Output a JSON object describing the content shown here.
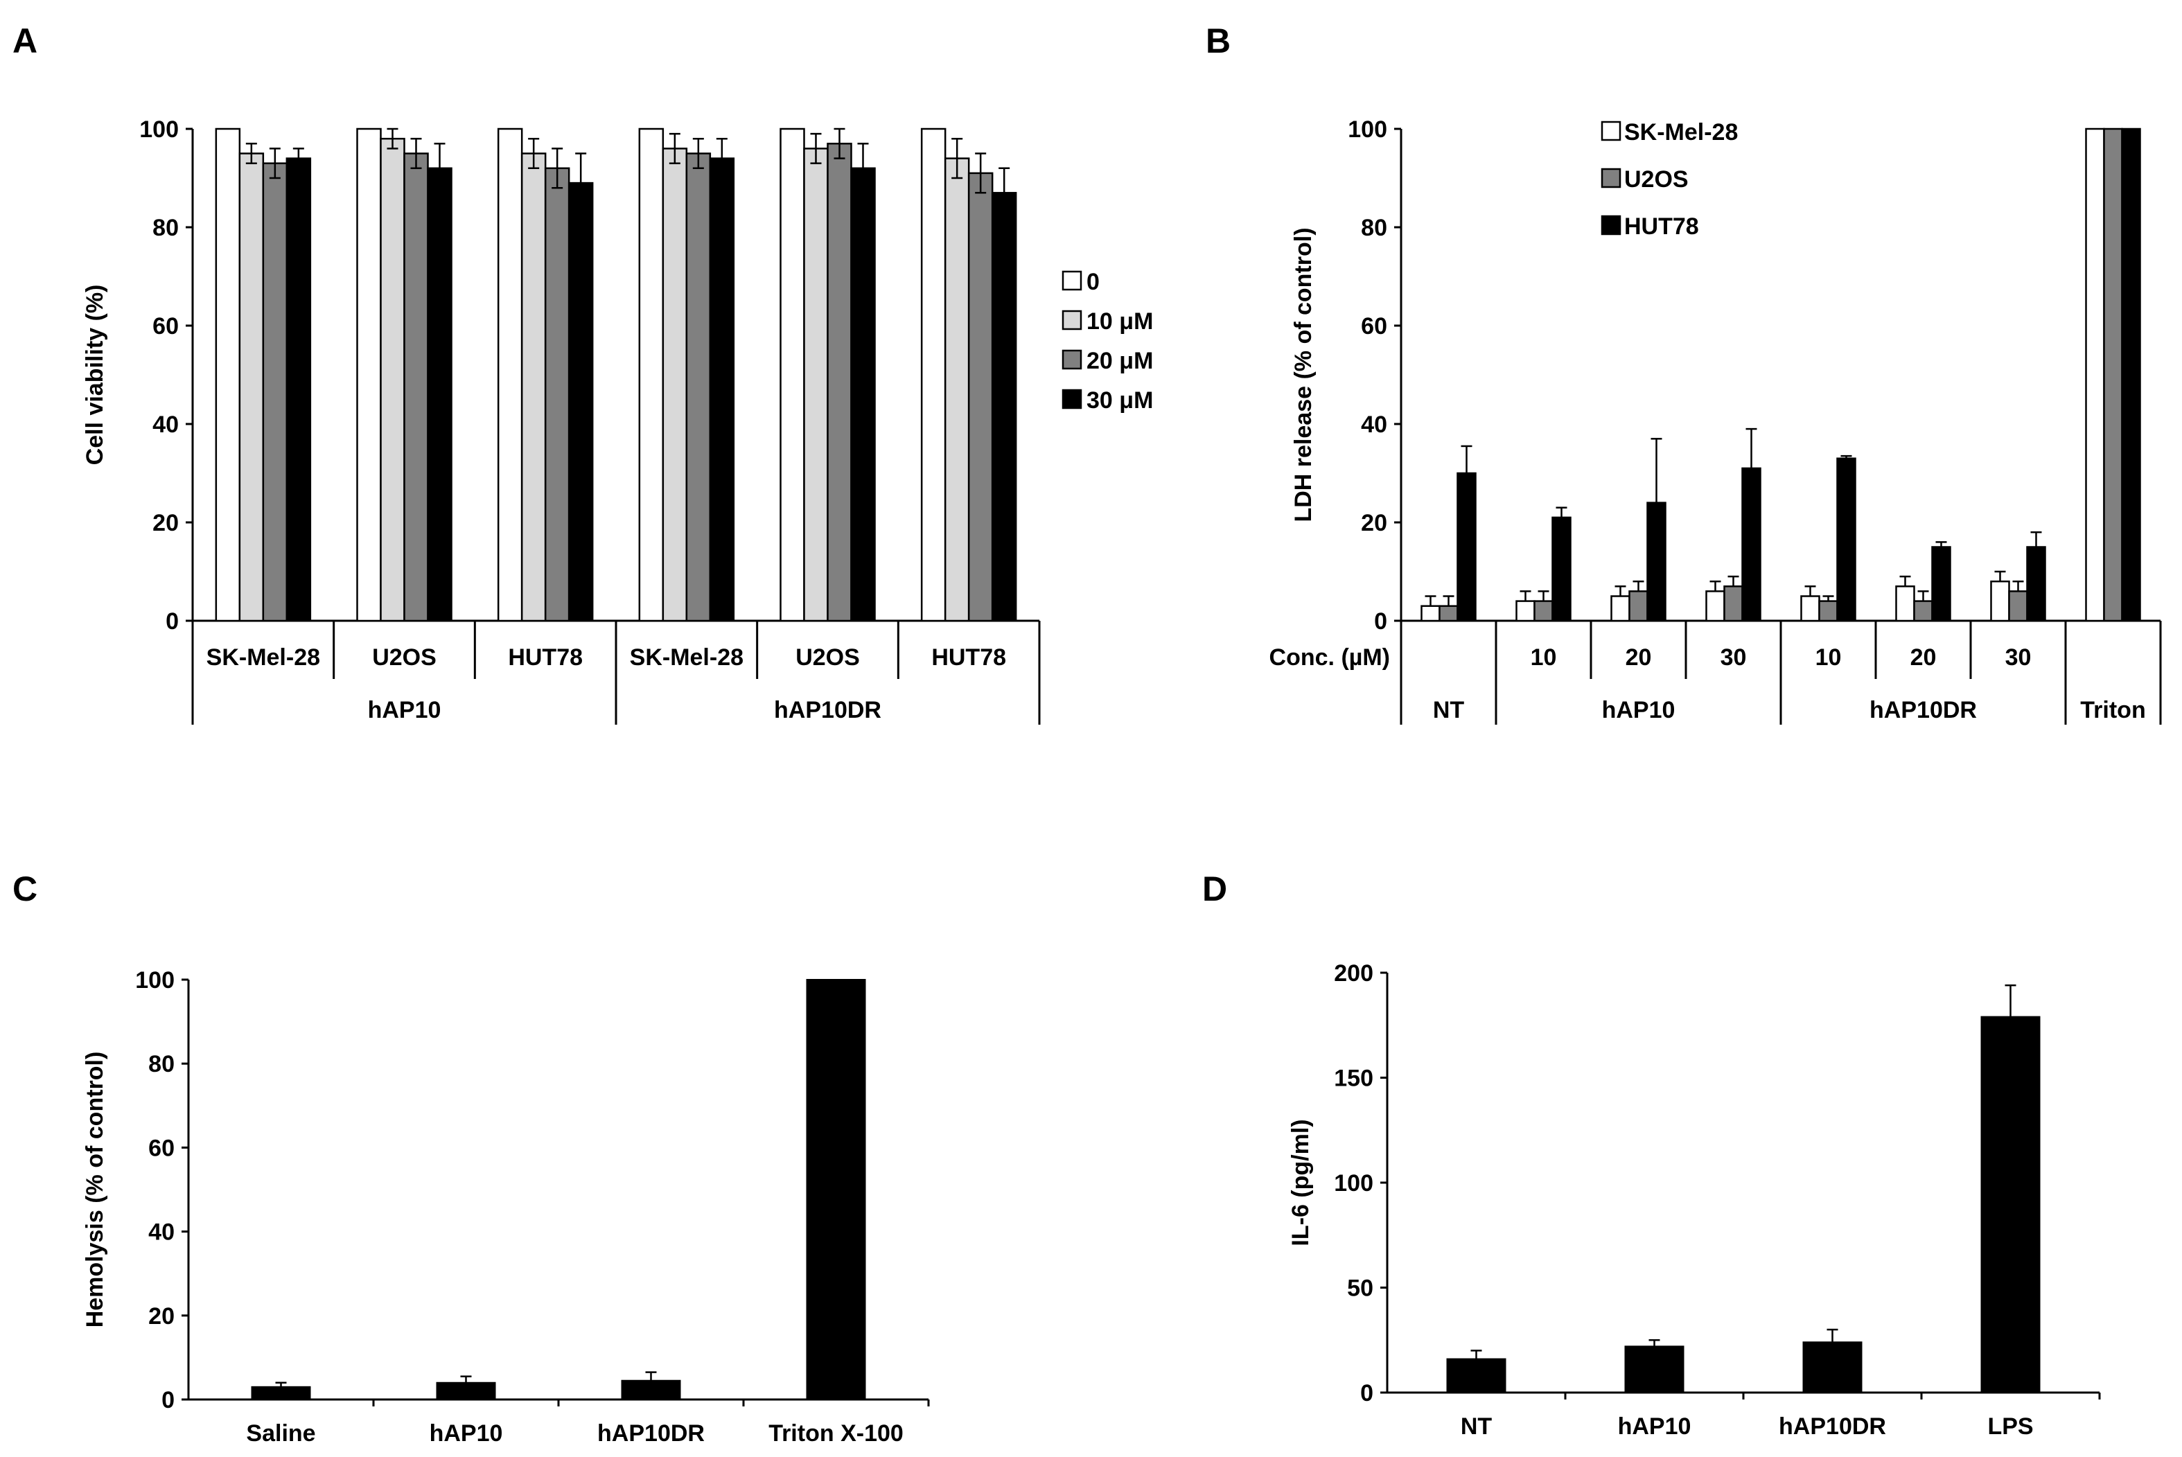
{
  "chart_data": [
    {
      "panel": "A",
      "type": "bar",
      "ylabel": "Cell viability (%)",
      "ylim": [
        0,
        100
      ],
      "yticks": [
        "0",
        "20",
        "40",
        "60",
        "80",
        "100"
      ],
      "categories": [
        "SK-Mel-28",
        "U2OS",
        "HUT78",
        "SK-Mel-28",
        "U2OS",
        "HUT78"
      ],
      "groups": [
        "hAP10",
        "hAP10DR"
      ],
      "series": [
        {
          "name": "0",
          "color": "#ffffff",
          "values": [
            100,
            100,
            100,
            100,
            100,
            100
          ],
          "errors": [
            0,
            0,
            0,
            0,
            0,
            0
          ]
        },
        {
          "name": "10 μM",
          "color": "#d9d9d9",
          "values": [
            95,
            98,
            95,
            96,
            96,
            94
          ],
          "errors": [
            2,
            2,
            3,
            3,
            3,
            4
          ]
        },
        {
          "name": "20 μM",
          "color": "#808080",
          "values": [
            93,
            95,
            92,
            95,
            97,
            91
          ],
          "errors": [
            3,
            3,
            4,
            3,
            3,
            4
          ]
        },
        {
          "name": "30 μM",
          "color": "#000000",
          "values": [
            94,
            92,
            89,
            94,
            92,
            87
          ],
          "errors": [
            2,
            5,
            6,
            4,
            5,
            5
          ]
        }
      ]
    },
    {
      "panel": "B",
      "type": "bar",
      "ylabel": "LDH release (% of control)",
      "ylim": [
        0,
        100
      ],
      "yticks": [
        "0",
        "20",
        "40",
        "60",
        "80",
        "100"
      ],
      "conc_label": "Conc. (µM)",
      "categories": [
        "",
        "10",
        "20",
        "30",
        "10",
        "20",
        "30",
        ""
      ],
      "groups": [
        "NT",
        "hAP10",
        "hAP10DR",
        "Triton"
      ],
      "series": [
        {
          "name": "SK-Mel-28",
          "color": "#ffffff",
          "values": [
            3,
            4,
            5,
            6,
            5,
            7,
            8,
            100
          ],
          "errors": [
            2,
            2,
            2,
            2,
            2,
            2,
            2,
            0
          ]
        },
        {
          "name": "U2OS",
          "color": "#808080",
          "values": [
            3,
            4,
            6,
            7,
            4,
            4,
            6,
            100
          ],
          "errors": [
            2,
            2,
            2,
            2,
            1,
            2,
            2,
            0
          ]
        },
        {
          "name": "HUT78",
          "color": "#000000",
          "values": [
            30,
            21,
            24,
            31,
            33,
            15,
            15,
            100
          ],
          "errors": [
            5.5,
            2,
            13,
            8,
            0.5,
            1,
            3,
            0
          ]
        }
      ]
    },
    {
      "panel": "C",
      "type": "bar",
      "ylabel": "Hemolysis (% of control)",
      "ylim": [
        0,
        100
      ],
      "yticks": [
        "0",
        "20",
        "40",
        "60",
        "80",
        "100"
      ],
      "categories": [
        "Saline",
        "hAP10",
        "hAP10DR",
        "Triton X-100"
      ],
      "values": [
        3,
        4,
        4.5,
        100
      ],
      "errors": [
        1,
        1.5,
        2,
        0
      ]
    },
    {
      "panel": "D",
      "type": "bar",
      "ylabel": "IL-6 (pg/ml)",
      "ylim": [
        0,
        200
      ],
      "yticks": [
        "0",
        "50",
        "100",
        "150",
        "200"
      ],
      "categories": [
        "NT",
        "hAP10",
        "hAP10DR",
        "LPS"
      ],
      "values": [
        16,
        22,
        24,
        179
      ],
      "errors": [
        4,
        3,
        6,
        15
      ]
    }
  ]
}
